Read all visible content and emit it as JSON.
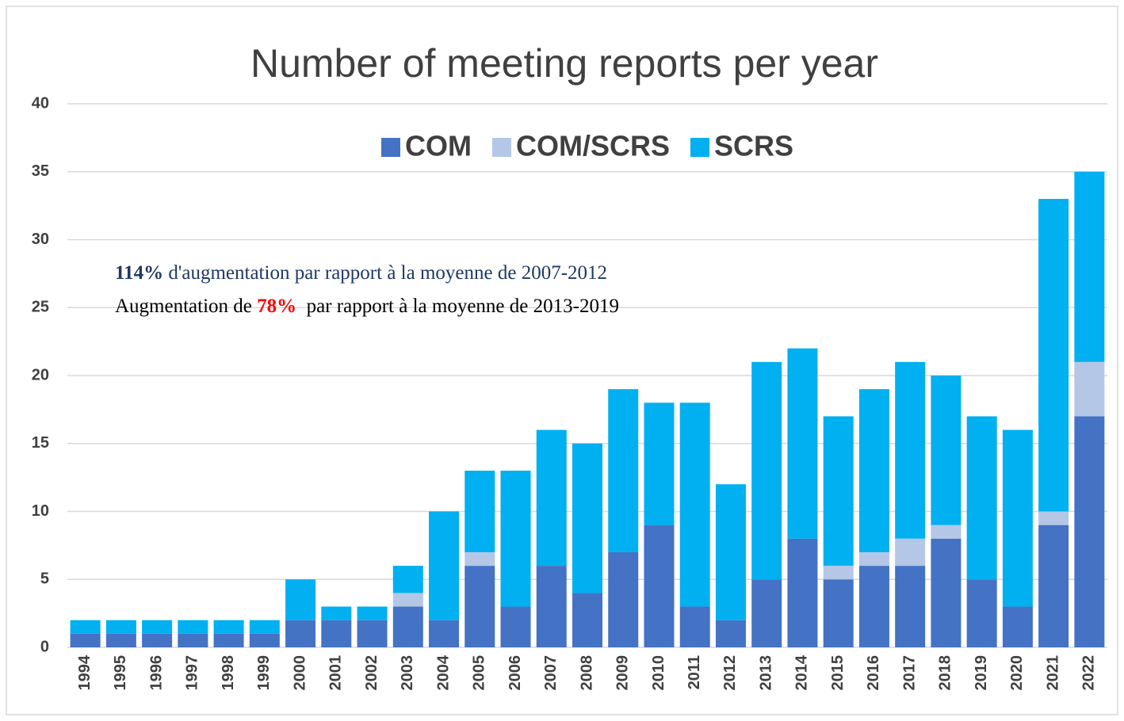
{
  "chart_data": {
    "type": "bar",
    "stacked": true,
    "title": "Number of meeting reports per year",
    "categories": [
      "1994",
      "1995",
      "1996",
      "1997",
      "1998",
      "1999",
      "2000",
      "2001",
      "2002",
      "2003",
      "2004",
      "2005",
      "2006",
      "2007",
      "2008",
      "2009",
      "2010",
      "2011",
      "2012",
      "2013",
      "2014",
      "2015",
      "2016",
      "2017",
      "2018",
      "2019",
      "2020",
      "2021",
      "2022"
    ],
    "series": [
      {
        "name": "COM",
        "color": "#4472c4",
        "values": [
          1,
          1,
          1,
          1,
          1,
          1,
          2,
          2,
          2,
          3,
          2,
          6,
          3,
          6,
          4,
          7,
          9,
          3,
          2,
          5,
          8,
          5,
          6,
          6,
          8,
          5,
          3,
          9,
          17
        ]
      },
      {
        "name": "COM/SCRS",
        "color": "#b4c7e7",
        "values": [
          0,
          0,
          0,
          0,
          0,
          0,
          0,
          0,
          0,
          1,
          0,
          1,
          0,
          0,
          0,
          0,
          0,
          0,
          0,
          0,
          0,
          1,
          1,
          2,
          1,
          0,
          0,
          1,
          4
        ]
      },
      {
        "name": "SCRS",
        "color": "#00b0f0",
        "values": [
          1,
          1,
          1,
          1,
          1,
          1,
          3,
          1,
          1,
          2,
          8,
          6,
          10,
          10,
          11,
          12,
          9,
          15,
          10,
          16,
          14,
          11,
          12,
          13,
          11,
          12,
          13,
          23,
          14
        ]
      }
    ],
    "ylim": [
      0,
      40
    ],
    "yticks": [
      0,
      5,
      10,
      15,
      20,
      25,
      30,
      35,
      40
    ],
    "grid": true,
    "legend": "top",
    "annotations": [
      [
        {
          "text": "114%",
          "color": "#1f3864",
          "bold": true
        },
        {
          "text": " d'augmentation par rapport à la moyenne de 2007-2012",
          "color": "#1f3864",
          "bold": false
        }
      ],
      [
        {
          "text": "Augmentation de ",
          "color": "#000000",
          "bold": false
        },
        {
          "text": "78%",
          "color": "#ff0000",
          "bold": true
        },
        {
          "text": "  par rapport à la moyenne de 2013-2019",
          "color": "#000000",
          "bold": false
        }
      ]
    ]
  }
}
